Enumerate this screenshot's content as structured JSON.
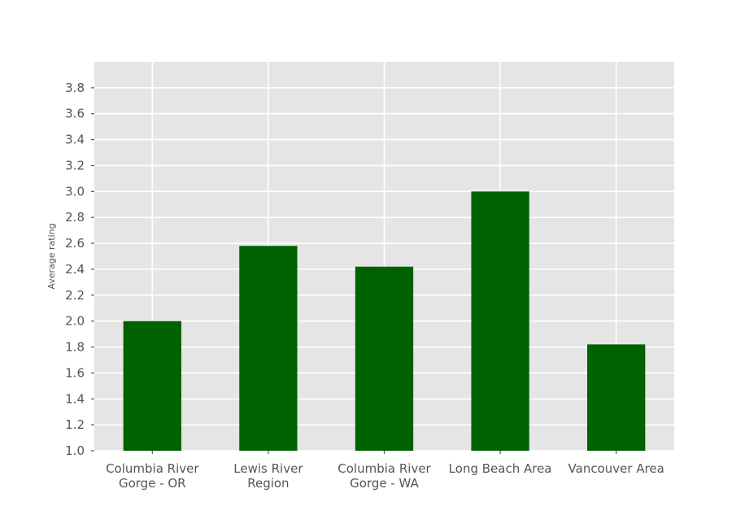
{
  "chart_data": {
    "type": "bar",
    "title": "",
    "xlabel": "",
    "ylabel": "Average rating",
    "categories": [
      [
        "Columbia River",
        "Gorge - OR"
      ],
      [
        "Lewis River",
        "Region"
      ],
      [
        "Columbia River",
        "Gorge - WA"
      ],
      [
        "Long Beach Area"
      ],
      [
        "Vancouver Area"
      ]
    ],
    "values": [
      2.0,
      2.58,
      2.42,
      3.0,
      1.82
    ],
    "ylim": [
      1.0,
      4.0
    ],
    "yticks": [
      "1.0",
      "1.2",
      "1.4",
      "1.6",
      "1.8",
      "2.0",
      "2.2",
      "2.4",
      "2.6",
      "2.8",
      "3.0",
      "3.2",
      "3.4",
      "3.6",
      "3.8"
    ],
    "grid": true,
    "legend": "none",
    "colors": {
      "bar": "#006100",
      "plot_background": "#e5e5e5",
      "grid": "#ffffff",
      "text": "#555555"
    }
  }
}
